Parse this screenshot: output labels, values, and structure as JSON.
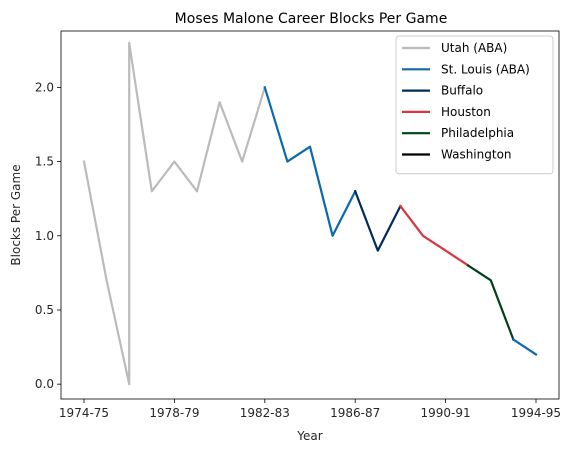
{
  "chart_data": {
    "type": "line",
    "title": "Moses Malone Career Blocks Per Game",
    "xlabel": "Year",
    "ylabel": "Blocks Per Game",
    "ylim": [
      -0.1,
      2.38
    ],
    "yticks": [
      "0.0",
      "0.5",
      "1.0",
      "1.5",
      "2.0"
    ],
    "xticks": [
      "1974-75",
      "1978-79",
      "1982-83",
      "1986-87",
      "1990-91",
      "1994-95"
    ],
    "grid": false,
    "legend_position": "top-right",
    "seasons": [
      "1974-75",
      "1975-76",
      "1976-77",
      "1976-77",
      "1977-78",
      "1978-79",
      "1979-80",
      "1980-81",
      "1981-82",
      "1982-83",
      "1983-84",
      "1984-85",
      "1985-86",
      "1986-87",
      "1987-88",
      "1988-89",
      "1989-90",
      "1990-91",
      "1991-92",
      "1992-93",
      "1993-94",
      "1994-95"
    ],
    "values": [
      1.5,
      0.7,
      0.0,
      2.3,
      1.3,
      1.5,
      1.3,
      1.9,
      1.5,
      2.0,
      1.5,
      1.6,
      1.0,
      1.3,
      0.9,
      1.2,
      1.0,
      0.9,
      0.8,
      0.7,
      0.3,
      0.2
    ],
    "series": [
      {
        "name": "Utah (ABA)",
        "color": "#bbbbbb",
        "points": [
          [
            0,
            1.5
          ],
          [
            1,
            0.7
          ],
          [
            2,
            0.0
          ],
          [
            2,
            2.3
          ],
          [
            3,
            1.3
          ],
          [
            4,
            1.5
          ],
          [
            5,
            1.3
          ],
          [
            6,
            1.9
          ],
          [
            7,
            1.5
          ],
          [
            8,
            2.0
          ]
        ]
      },
      {
        "name": "St. Louis (ABA)",
        "color": "#0a6aad",
        "points": [
          [
            8,
            2.0
          ],
          [
            9,
            1.5
          ],
          [
            10,
            1.6
          ],
          [
            11,
            1.0
          ],
          [
            12,
            1.3
          ]
        ]
      },
      {
        "name": "Buffalo",
        "color": "#002b5c",
        "points": [
          [
            12,
            1.3
          ],
          [
            13,
            0.9
          ],
          [
            14,
            1.2
          ]
        ]
      },
      {
        "name": "Houston",
        "color": "#d8363f",
        "points": [
          [
            14,
            1.2
          ],
          [
            15,
            1.0
          ],
          [
            16,
            0.9
          ],
          [
            17,
            0.8
          ]
        ]
      },
      {
        "name": "Philadelphia",
        "color": "#004218",
        "points": [
          [
            17,
            0.8
          ],
          [
            18,
            0.7
          ],
          [
            19,
            0.3
          ]
        ]
      },
      {
        "name": "Washington",
        "color": "#000000",
        "points": []
      },
      {
        "name": "",
        "color": "#0a6aad",
        "points": [
          [
            19,
            0.3
          ],
          [
            20,
            0.2
          ]
        ]
      }
    ]
  }
}
